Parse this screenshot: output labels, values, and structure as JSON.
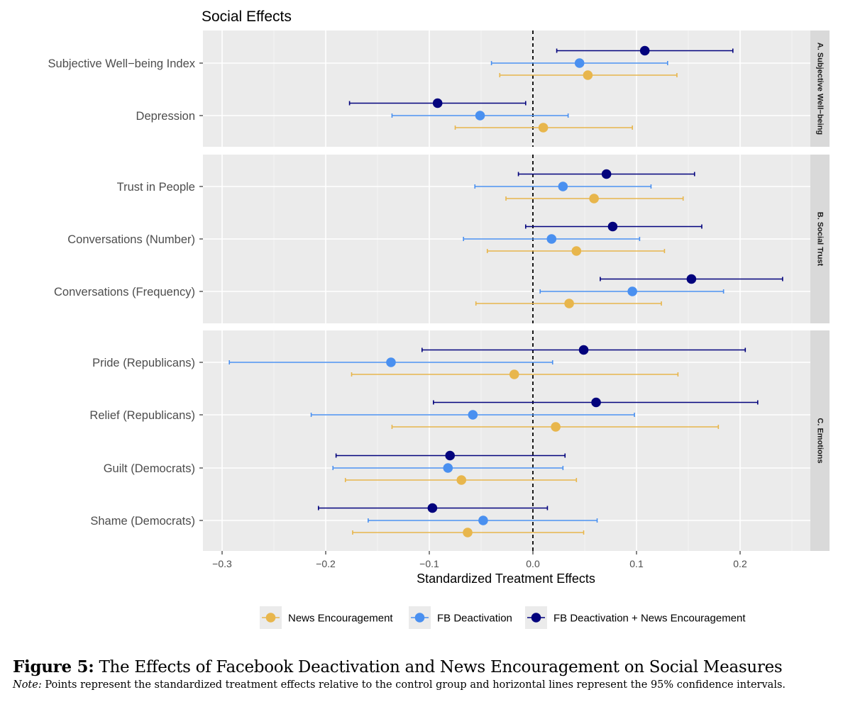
{
  "chart_data": {
    "type": "forest-plot",
    "title": "Social Effects",
    "xlabel": "Standardized Treatment Effects",
    "xlim": [
      -0.32,
      0.29
    ],
    "xticks": [
      -0.3,
      -0.2,
      -0.1,
      0.0,
      0.1,
      0.2
    ],
    "xtick_labels": [
      "−0.3",
      "−0.2",
      "−0.1",
      "0.0",
      "0.1",
      "0.2"
    ],
    "reference_line": 0,
    "series": [
      {
        "key": "news",
        "name": "News Encouragement",
        "color": "#E8B64C"
      },
      {
        "key": "fb",
        "name": "FB Deactivation",
        "color": "#4A90F0"
      },
      {
        "key": "both",
        "name": "FB Deactivation + News Encouragement",
        "color": "#03037D"
      }
    ],
    "panels": [
      {
        "label": "A. Subjective Well−being",
        "rows": [
          {
            "label": "Subjective Well−being Index",
            "both": {
              "est": 0.108,
              "lo": 0.023,
              "hi": 0.193
            },
            "fb": {
              "est": 0.045,
              "lo": -0.04,
              "hi": 0.13
            },
            "news": {
              "est": 0.053,
              "lo": -0.032,
              "hi": 0.139
            }
          },
          {
            "label": "Depression",
            "both": {
              "est": -0.092,
              "lo": -0.177,
              "hi": -0.007
            },
            "fb": {
              "est": -0.051,
              "lo": -0.136,
              "hi": 0.034
            },
            "news": {
              "est": 0.01,
              "lo": -0.075,
              "hi": 0.096
            }
          }
        ]
      },
      {
        "label": "B. Social Trust",
        "rows": [
          {
            "label": "Trust in People",
            "both": {
              "est": 0.071,
              "lo": -0.014,
              "hi": 0.156
            },
            "fb": {
              "est": 0.029,
              "lo": -0.056,
              "hi": 0.114
            },
            "news": {
              "est": 0.059,
              "lo": -0.026,
              "hi": 0.145
            }
          },
          {
            "label": "Conversations (Number)",
            "both": {
              "est": 0.077,
              "lo": -0.007,
              "hi": 0.163
            },
            "fb": {
              "est": 0.018,
              "lo": -0.067,
              "hi": 0.103
            },
            "news": {
              "est": 0.042,
              "lo": -0.044,
              "hi": 0.127
            }
          },
          {
            "label": "Conversations (Frequency)",
            "both": {
              "est": 0.153,
              "lo": 0.065,
              "hi": 0.241
            },
            "fb": {
              "est": 0.096,
              "lo": 0.007,
              "hi": 0.184
            },
            "news": {
              "est": 0.035,
              "lo": -0.055,
              "hi": 0.124
            }
          }
        ]
      },
      {
        "label": "C. Emotions",
        "rows": [
          {
            "label": "Pride (Republicans)",
            "both": {
              "est": 0.049,
              "lo": -0.107,
              "hi": 0.205
            },
            "fb": {
              "est": -0.137,
              "lo": -0.293,
              "hi": 0.019
            },
            "news": {
              "est": -0.018,
              "lo": -0.175,
              "hi": 0.14
            }
          },
          {
            "label": "Relief (Republicans)",
            "both": {
              "est": 0.061,
              "lo": -0.096,
              "hi": 0.217
            },
            "fb": {
              "est": -0.058,
              "lo": -0.214,
              "hi": 0.098
            },
            "news": {
              "est": 0.022,
              "lo": -0.136,
              "hi": 0.179
            }
          },
          {
            "label": "Guilt (Democrats)",
            "both": {
              "est": -0.08,
              "lo": -0.19,
              "hi": 0.031
            },
            "fb": {
              "est": -0.082,
              "lo": -0.193,
              "hi": 0.029
            },
            "news": {
              "est": -0.069,
              "lo": -0.181,
              "hi": 0.042
            }
          },
          {
            "label": "Shame (Democrats)",
            "both": {
              "est": -0.097,
              "lo": -0.207,
              "hi": 0.014
            },
            "fb": {
              "est": -0.048,
              "lo": -0.159,
              "hi": 0.062
            },
            "news": {
              "est": -0.063,
              "lo": -0.174,
              "hi": 0.049
            }
          }
        ]
      }
    ]
  },
  "caption": {
    "figure_label": "Figure 5:",
    "figure_title": "The Effects of Facebook Deactivation and News Encouragement on Social Measures",
    "note_label": "Note:",
    "note_text": "Points represent the standardized treatment effects relative to the control group and horizontal lines represent the 95% confidence intervals."
  }
}
